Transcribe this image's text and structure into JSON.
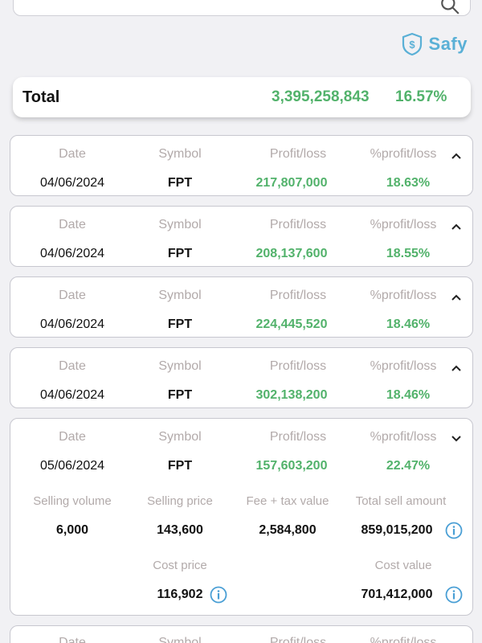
{
  "brand": {
    "name": "Safy"
  },
  "summary": {
    "label": "Total",
    "value": "3,395,258,843",
    "percent": "16.57%"
  },
  "columns": {
    "date": "Date",
    "symbol": "Symbol",
    "pl": "Profit/loss",
    "pct": "%profit/loss"
  },
  "detail_columns": {
    "selling_volume": "Selling volume",
    "selling_price": "Selling price",
    "fee_tax": "Fee + tax value",
    "total_sell": "Total sell amount",
    "cost_price": "Cost price",
    "cost_value": "Cost value"
  },
  "trades": [
    {
      "date": "04/06/2024",
      "symbol": "FPT",
      "pl": "217,807,000",
      "pct": "18.63%",
      "expanded": false
    },
    {
      "date": "04/06/2024",
      "symbol": "FPT",
      "pl": "208,137,600",
      "pct": "18.55%",
      "expanded": false
    },
    {
      "date": "04/06/2024",
      "symbol": "FPT",
      "pl": "224,445,520",
      "pct": "18.46%",
      "expanded": false
    },
    {
      "date": "04/06/2024",
      "symbol": "FPT",
      "pl": "302,138,200",
      "pct": "18.46%",
      "expanded": false
    },
    {
      "date": "05/06/2024",
      "symbol": "FPT",
      "pl": "157,603,200",
      "pct": "22.47%",
      "expanded": true,
      "detail": {
        "selling_volume": "6,000",
        "selling_price": "143,600",
        "fee_tax": "2,584,800",
        "total_sell": "859,015,200",
        "cost_price": "116,902",
        "cost_value": "701,412,000"
      }
    }
  ],
  "colors": {
    "profit": "#52b26b",
    "accent": "#5ab0d6",
    "header_text": "#b2aaaa"
  }
}
